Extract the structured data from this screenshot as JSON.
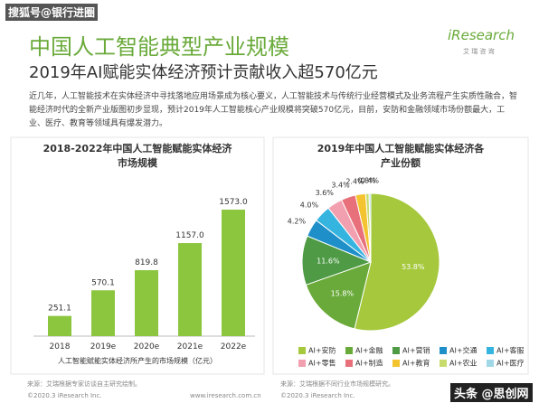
{
  "watermark": "搜狐号@银行进圈",
  "logo": {
    "name": "iResearch",
    "tagline": "艾 瑞 咨 询"
  },
  "header": {
    "title": "中国人工智能典型产业规模",
    "subtitle": "2019年AI赋能实体经济预计贡献收入超570亿元"
  },
  "intro": "近几年，人工智能技术在实体经济中寻找落地应用场景成为核心要义，人工智能技术与传统行业经营模式及业务流程产生实质性融合，智能经济时代的全新产业版图初步显现，预计2019年人工智能核心产业规模将突破570亿元，目前，安防和金融领域市场份额最大，工业、医疗、教育等领域具有爆发潜力。",
  "chart_data": [
    {
      "type": "bar",
      "title": [
        "2018-2022年中国人工智能赋能实体经济",
        "市场规模"
      ],
      "categories": [
        "2018",
        "2019e",
        "2020e",
        "2021e",
        "2022e"
      ],
      "values": [
        251.1,
        570.1,
        819.8,
        1157,
        1573
      ],
      "value_labels": [
        "251.1",
        "570.1",
        "819.8",
        "1157.0",
        "1573.0"
      ],
      "color": "#8cc63f",
      "caption": "人工智能赋能实体经济所产生的市场规模（亿元）",
      "source": "来源：艾瑞根据专家访谈自主研究绘制。"
    },
    {
      "type": "pie",
      "title": [
        "2019年中国人工智能赋能实体经济各",
        "产业份额"
      ],
      "categories": [
        "AI+安防",
        "AI+金融",
        "AI+营销",
        "AI+交通",
        "AI+客服",
        "AI+零售",
        "AI+制造",
        "AI+教育",
        "AI+农业",
        "AI+医疗"
      ],
      "values": [
        53.8,
        15.8,
        11.6,
        4.2,
        4.0,
        3.6,
        3.4,
        2.4,
        0.8,
        0.4
      ],
      "value_labels": [
        "53.8%",
        "15.8%",
        "11.6%",
        "4.2%",
        "4.0%",
        "3.6%",
        "3.4%",
        "2.4%",
        "0.8%",
        "0.4%"
      ],
      "colors": [
        "#a5c83c",
        "#6aaa3a",
        "#4e9a45",
        "#1e8fc8",
        "#36b4e0",
        "#f2a0b0",
        "#e8707a",
        "#f4c430",
        "#c8dc6e",
        "#a0d8e8"
      ],
      "source": "来源：艾瑞根据不同行业市场规模研究。"
    }
  ],
  "footer": {
    "left": "©2020.3 iResearch Inc.",
    "left_url": "www.iresearch.com.cn",
    "right": "©2020.3 iResearch Inc.",
    "corner": "头条 @思创网"
  }
}
